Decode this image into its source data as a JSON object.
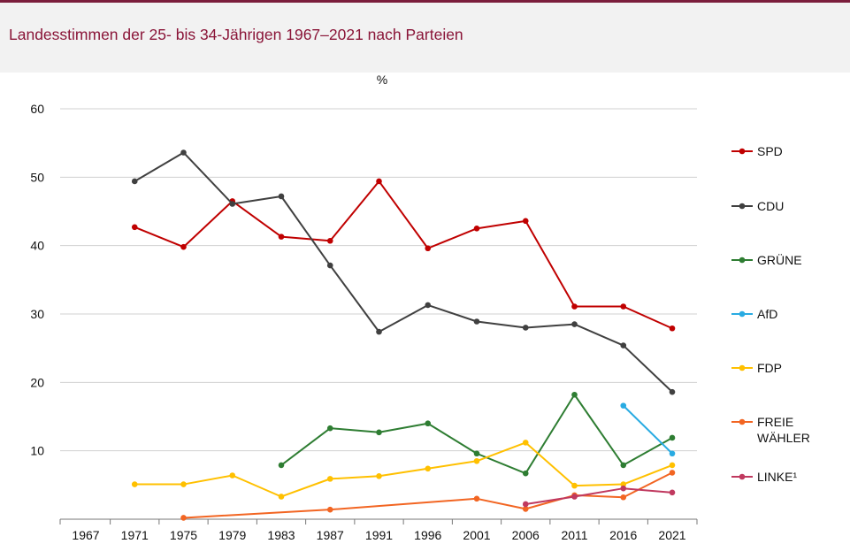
{
  "header": {
    "title": "Landesstimmen der 25- bis 34-Jährigen 1967–2021 nach Parteien"
  },
  "chart_data": {
    "type": "line",
    "title": "Landesstimmen der 25- bis 34-Jährigen 1967–2021 nach Parteien",
    "ylabel": "%",
    "xlabel": "",
    "ylim": [
      0,
      60
    ],
    "yticks": [
      10,
      20,
      30,
      40,
      50,
      60
    ],
    "categories": [
      "1967",
      "1971",
      "1975",
      "1979",
      "1983",
      "1987",
      "1991",
      "1996",
      "2001",
      "2006",
      "2011",
      "2016",
      "2021"
    ],
    "grid": true,
    "legend": "right",
    "series": [
      {
        "name": "SPD",
        "color": "#c00000",
        "values": [
          null,
          42.7,
          39.8,
          46.5,
          41.3,
          40.7,
          49.4,
          39.6,
          42.5,
          43.6,
          31.1,
          31.1,
          27.9
        ]
      },
      {
        "name": "CDU",
        "color": "#404040",
        "values": [
          null,
          49.4,
          53.6,
          46.1,
          47.2,
          37.1,
          27.4,
          31.3,
          28.9,
          28.0,
          28.5,
          25.4,
          18.6
        ]
      },
      {
        "name": "GRÜNE",
        "color": "#2e7d32",
        "values": [
          null,
          null,
          null,
          null,
          7.9,
          13.3,
          12.7,
          14.0,
          9.6,
          6.7,
          18.2,
          7.9,
          11.9
        ]
      },
      {
        "name": "AfD",
        "color": "#29abe2",
        "values": [
          null,
          null,
          null,
          null,
          null,
          null,
          null,
          null,
          null,
          null,
          null,
          16.6,
          9.6
        ]
      },
      {
        "name": "FDP",
        "color": "#ffc000",
        "values": [
          null,
          5.1,
          5.1,
          6.4,
          3.3,
          5.9,
          6.3,
          7.4,
          8.5,
          11.2,
          4.9,
          5.1,
          7.9
        ]
      },
      {
        "name": "FREIE\nWÄHLER",
        "color": "#f26522",
        "values": [
          null,
          null,
          0.2,
          null,
          null,
          1.4,
          null,
          null,
          3.0,
          1.5,
          3.5,
          3.2,
          6.8
        ]
      },
      {
        "name": "LINKE¹",
        "color": "#c0395f",
        "values": [
          null,
          null,
          null,
          null,
          null,
          null,
          null,
          null,
          null,
          2.2,
          3.3,
          4.5,
          3.9
        ]
      }
    ]
  }
}
